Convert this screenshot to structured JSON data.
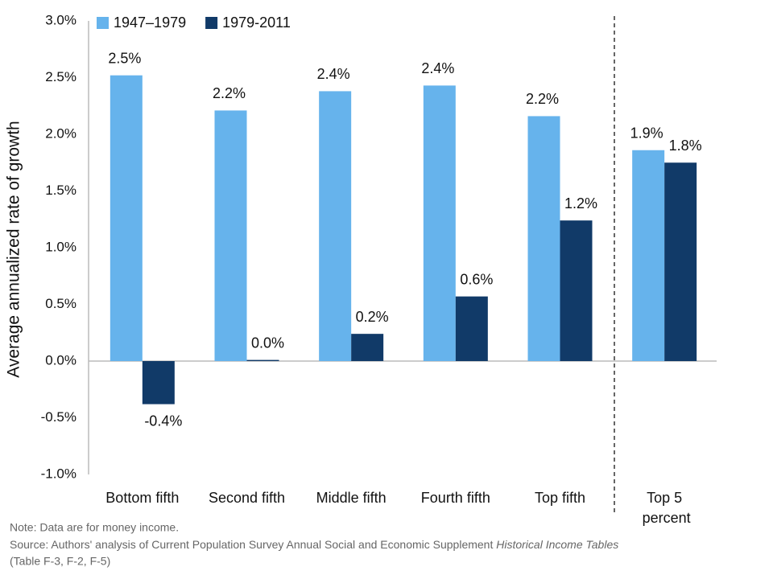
{
  "chart_data": {
    "type": "bar",
    "ylabel": "Average annualized rate of growth",
    "categories": [
      "Bottom fifth",
      "Second fifth",
      "Middle fifth",
      "Fourth fifth",
      "Top fifth",
      "Top 5 percent"
    ],
    "series": [
      {
        "name": "1947–1979",
        "color": "#66b3ec",
        "values": [
          2.52,
          2.21,
          2.38,
          2.43,
          2.16,
          1.86
        ],
        "value_labels": [
          "2.5%",
          "2.2%",
          "2.4%",
          "2.4%",
          "2.2%",
          "1.9%"
        ]
      },
      {
        "name": "1979-2011",
        "color": "#113a68",
        "values": [
          -0.38,
          0.01,
          0.24,
          0.57,
          1.24,
          1.75
        ],
        "value_labels": [
          "-0.4%",
          "0.0%",
          "0.2%",
          "0.6%",
          "1.2%",
          "1.8%"
        ]
      }
    ],
    "ylim": [
      -1.0,
      3.0
    ],
    "yticks": [
      {
        "value": -1.0,
        "label": "-1.0%"
      },
      {
        "value": -0.5,
        "label": "-0.5%"
      },
      {
        "value": 0.0,
        "label": "0.0%"
      },
      {
        "value": 0.5,
        "label": "0.5%"
      },
      {
        "value": 1.0,
        "label": "1.0%"
      },
      {
        "value": 1.5,
        "label": "1.5%"
      },
      {
        "value": 2.0,
        "label": "2.0%"
      },
      {
        "value": 2.5,
        "label": "2.5%"
      },
      {
        "value": 3.0,
        "label": "3.0%"
      }
    ],
    "grid": false,
    "legend": "top-left",
    "note": "Note: Data are for money income.",
    "source": "Source: Authors' analysis of Current Population Survey Annual Social and Economic Supplement",
    "source_italic": "Historical Income Tables",
    "source_cont": "(Table F-3, F-2, F-5)"
  }
}
